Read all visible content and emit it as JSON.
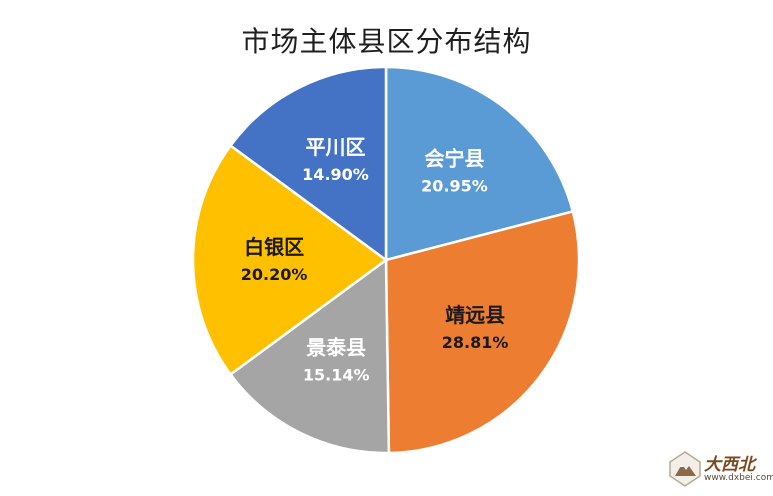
{
  "chart_data": {
    "type": "pie",
    "title": "市场主体县区分布结构",
    "categories": [
      "会宁县",
      "靖远县",
      "景泰县",
      "白银区",
      "平川区"
    ],
    "values": [
      20.95,
      28.81,
      15.14,
      20.2,
      14.9
    ],
    "value_labels": [
      "20.95%",
      "28.81%",
      "15.14%",
      "20.20%",
      "14.90%"
    ],
    "colors": [
      "#5B9BD5",
      "#ED7D31",
      "#A5A5A5",
      "#FFC000",
      "#4472C4"
    ],
    "start_angle": "12 o'clock",
    "direction": "clockwise",
    "legend": "none",
    "data_labels": "inside"
  },
  "watermark": {
    "brand": "大西北",
    "url": "www.dxbei.com",
    "icon": "mountain-logo-icon"
  }
}
